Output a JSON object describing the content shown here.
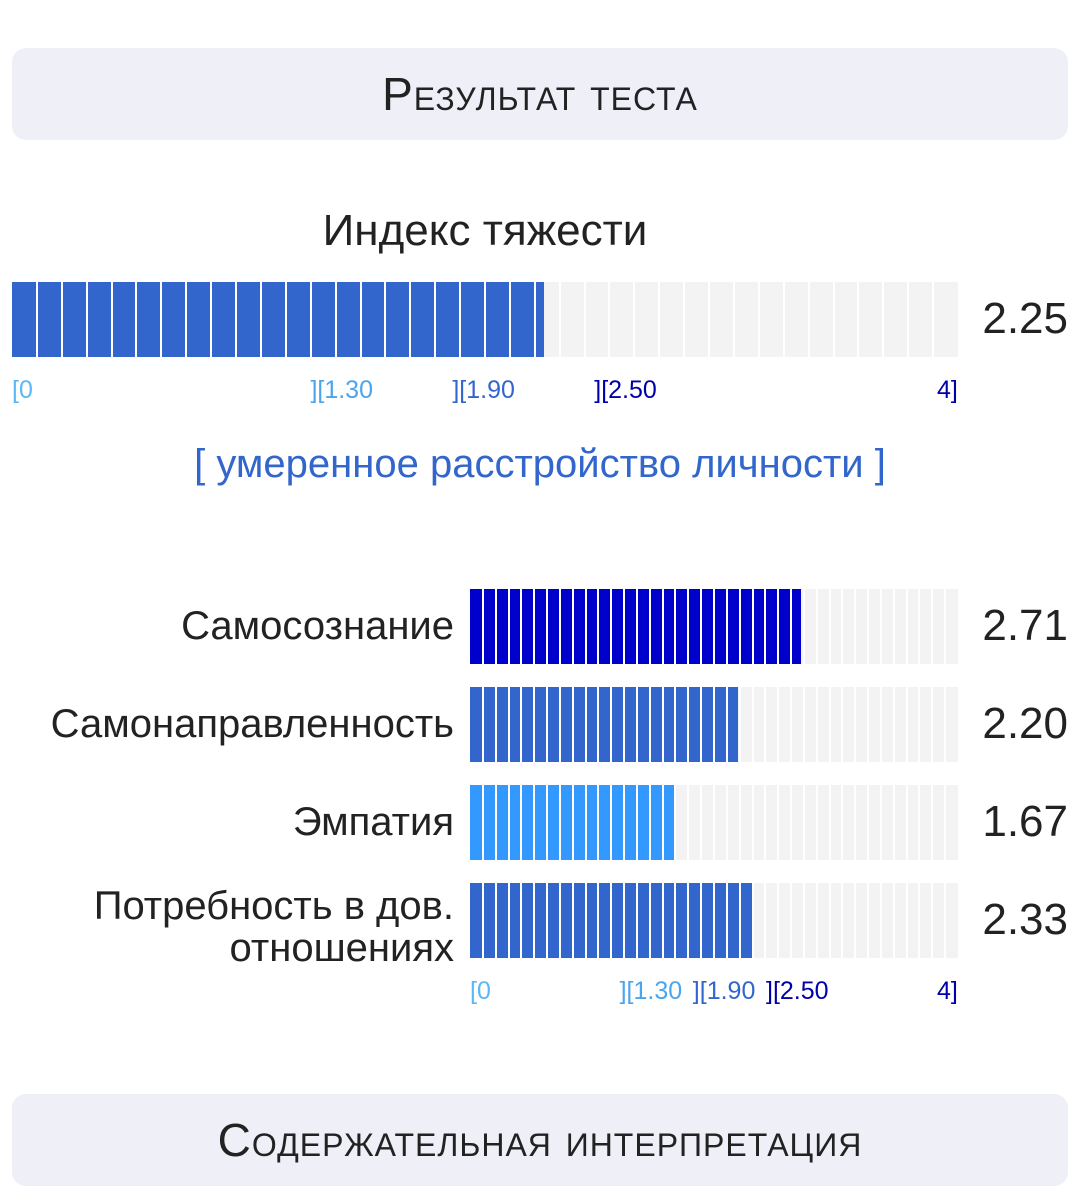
{
  "header": {
    "title": "Результат теста"
  },
  "severity": {
    "title": "Индекс тяжести",
    "value": 2.25,
    "value_text": "2.25",
    "category": "[ умеренное расстройство личности ]",
    "color": "#3366cc"
  },
  "scale": {
    "min": 0,
    "max": 4,
    "segments": 38,
    "labels": [
      {
        "text": "[0",
        "value": 0,
        "color": "#5bb8f5"
      },
      {
        "text": "][1.30",
        "value": 1.3,
        "color": "#4aa5ef"
      },
      {
        "text": "][1.90",
        "value": 1.9,
        "color": "#3366cc"
      },
      {
        "text": "][2.50",
        "value": 2.5,
        "color": "#0000aa"
      },
      {
        "text": "4]",
        "value": 4,
        "color": "#0000aa"
      }
    ]
  },
  "subscales": [
    {
      "label": "Самосознание",
      "value": 2.71,
      "value_text": "2.71",
      "color": "#0000cc"
    },
    {
      "label": "Самонаправленность",
      "value": 2.2,
      "value_text": "2.20",
      "color": "#3366cc"
    },
    {
      "label": "Эмпатия",
      "value": 1.67,
      "value_text": "1.67",
      "color": "#3399ff"
    },
    {
      "label": "Потребность в дов. отношениях",
      "label_line1": "Потребность в дов.",
      "label_line2": "отношениях",
      "value": 2.33,
      "value_text": "2.33",
      "color": "#3366cc"
    }
  ],
  "footer": {
    "title": "Содержательная интерпретация"
  }
}
